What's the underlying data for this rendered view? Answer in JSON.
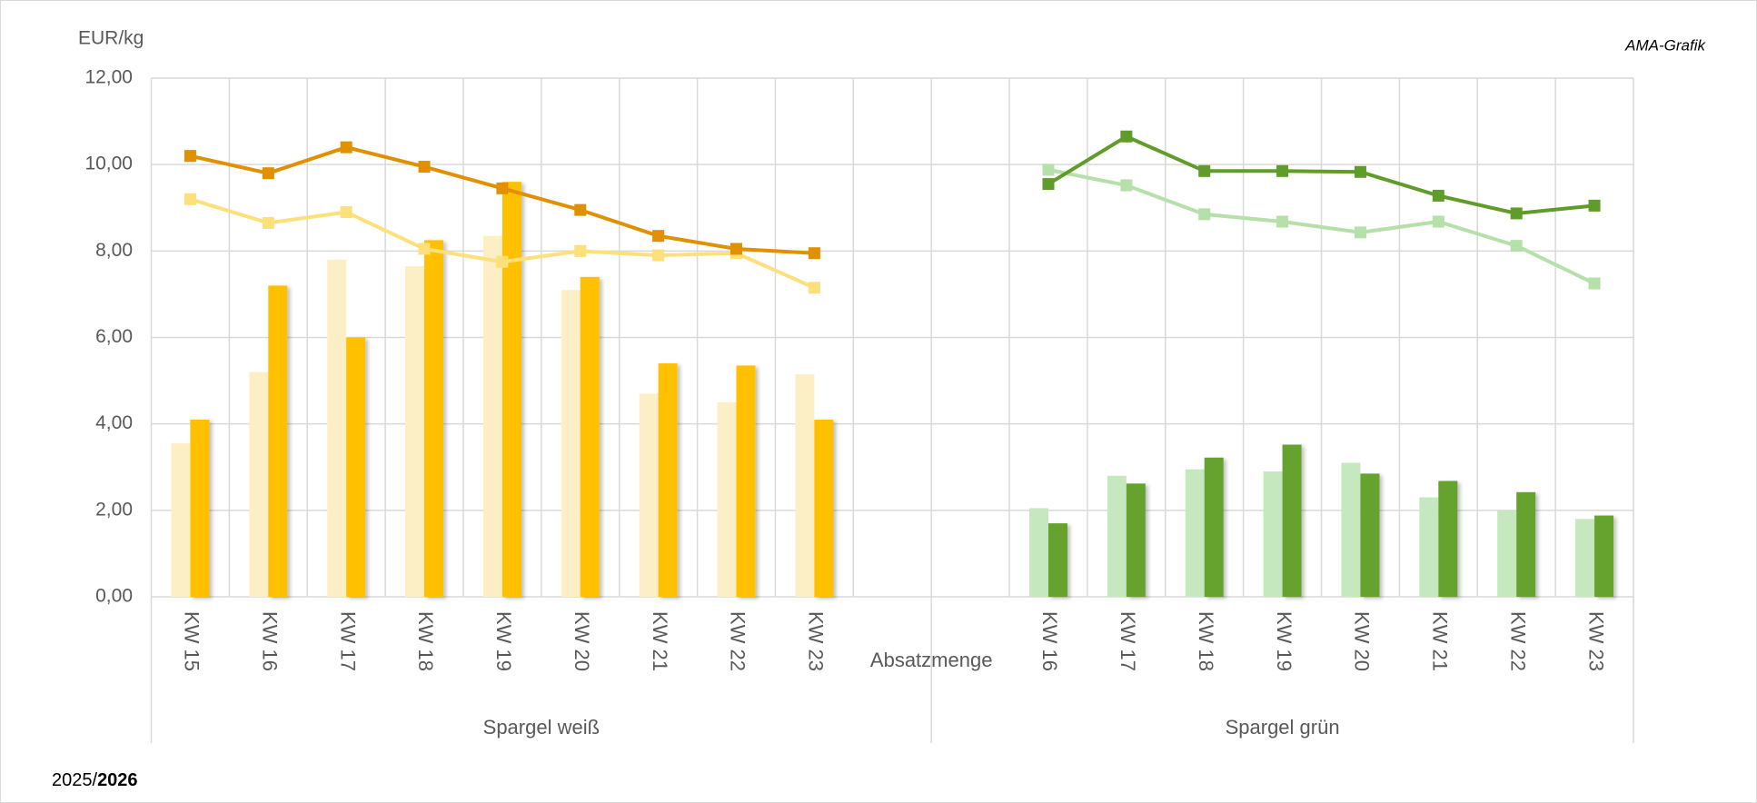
{
  "chart_data": {
    "type": "bar",
    "y_label": "EUR/kg",
    "source": "AMA-Grafik",
    "annotation": "Absatzmenge",
    "footer": [
      "2025/",
      "2026"
    ],
    "ylim": [
      0,
      12
    ],
    "yticks": [
      {
        "value": 0,
        "label": "0,00"
      },
      {
        "value": 2,
        "label": "2,00"
      },
      {
        "value": 4,
        "label": "4,00"
      },
      {
        "value": 6,
        "label": "6,00"
      },
      {
        "value": 8,
        "label": "8,00"
      },
      {
        "value": 10,
        "label": "10,00"
      },
      {
        "value": 12,
        "label": "12,00"
      }
    ],
    "grid": true,
    "groups": [
      {
        "label": "Spargel weiß",
        "categories": [
          "KW 15",
          "KW 16",
          "KW 17",
          "KW 18",
          "KW 19",
          "KW 20",
          "KW 21",
          "KW 22",
          "KW 23",
          null
        ],
        "series": [
          {
            "type": "bar",
            "color": "#fdefc5",
            "values": [
              3.55,
              5.2,
              7.8,
              7.65,
              8.35,
              7.1,
              4.7,
              4.5,
              5.15,
              null
            ]
          },
          {
            "type": "bar",
            "color": "#ffc000",
            "values": [
              4.1,
              7.2,
              6.0,
              8.25,
              9.6,
              7.4,
              5.4,
              5.35,
              4.1,
              null
            ]
          },
          {
            "type": "line",
            "color": "#fde07a",
            "values": [
              9.2,
              8.65,
              8.9,
              8.05,
              7.75,
              8.0,
              7.9,
              7.95,
              7.15,
              null
            ]
          },
          {
            "type": "line",
            "color": "#e09000",
            "values": [
              10.2,
              9.8,
              10.4,
              9.95,
              9.45,
              8.95,
              8.35,
              8.05,
              7.95,
              null
            ]
          }
        ]
      },
      {
        "label": "Spargel grün",
        "categories": [
          null,
          "KW 16",
          "KW 17",
          "KW 18",
          "KW 19",
          "KW 20",
          "KW 21",
          "KW 22",
          "KW 23"
        ],
        "series": [
          {
            "type": "bar",
            "color": "#c6e8bf",
            "values": [
              null,
              2.05,
              2.8,
              2.95,
              2.9,
              3.1,
              2.3,
              2.0,
              1.8
            ]
          },
          {
            "type": "bar",
            "color": "#65a22e",
            "values": [
              null,
              1.7,
              2.62,
              3.22,
              3.52,
              2.85,
              2.68,
              2.42,
              1.88
            ]
          },
          {
            "type": "line",
            "color": "#b5e0aa",
            "values": [
              null,
              9.88,
              9.52,
              8.85,
              8.68,
              8.43,
              8.68,
              8.12,
              7.25
            ]
          },
          {
            "type": "line",
            "color": "#5f9c2a",
            "values": [
              null,
              9.55,
              10.65,
              9.85,
              9.85,
              9.83,
              9.28,
              8.87,
              9.05
            ]
          }
        ]
      }
    ]
  }
}
